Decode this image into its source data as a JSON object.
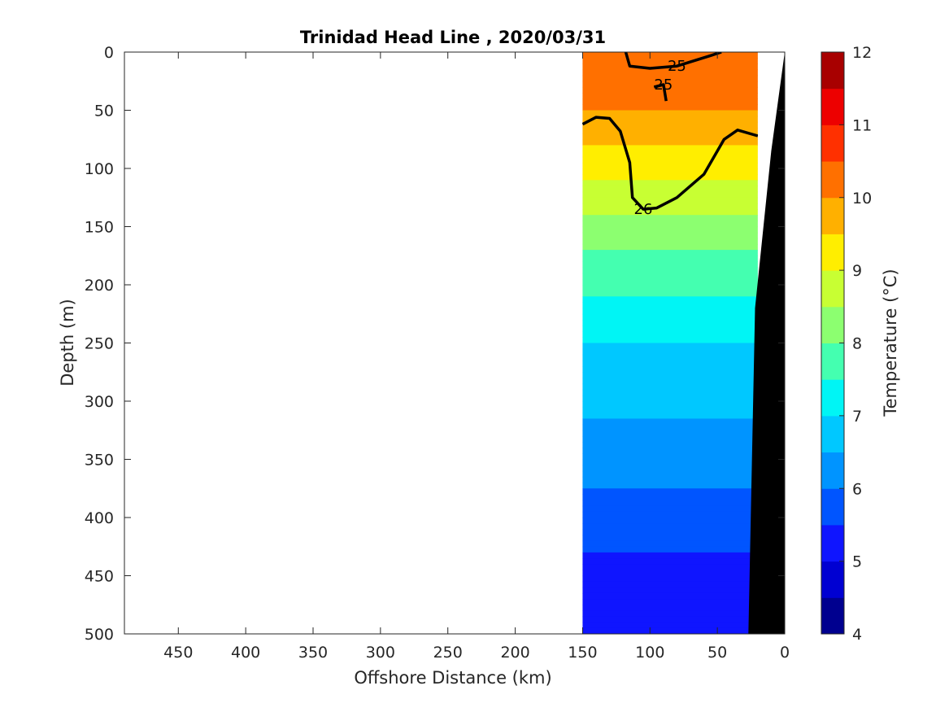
{
  "chart_data": {
    "type": "heatmap",
    "title": "Trinidad Head Line , 2020/03/31",
    "xlabel": "Offshore Distance (km)",
    "ylabel": "Depth (m)",
    "xlim": [
      490,
      0
    ],
    "ylim": [
      500,
      0
    ],
    "x_reversed": true,
    "y_reversed": true,
    "x_ticks": [
      "450",
      "400",
      "350",
      "300",
      "250",
      "200",
      "150",
      "100",
      "50",
      "0"
    ],
    "y_ticks": [
      "0",
      "50",
      "100",
      "150",
      "200",
      "250",
      "300",
      "350",
      "400",
      "450",
      "500"
    ],
    "colorbar": {
      "label": "Temperature (°C)",
      "range": [
        4,
        12
      ],
      "step": 0.5,
      "tick_labels": [
        "12",
        "11",
        "10",
        "9",
        "8",
        "7",
        "6",
        "5",
        "4"
      ],
      "colors": [
        "#00008f",
        "#0000d2",
        "#0f15ff",
        "#0055ff",
        "#0094ff",
        "#00c8ff",
        "#00f5f5",
        "#44ffb0",
        "#8cff70",
        "#c8ff33",
        "#ffee00",
        "#ffb000",
        "#ff7000",
        "#ff3000",
        "#ed0000",
        "#a80000"
      ]
    },
    "data_extent_km": [
      150,
      20
    ],
    "temperature_profile": [
      {
        "depth": 0,
        "temp": 10.5
      },
      {
        "depth": 50,
        "temp": 10.0
      },
      {
        "depth": 100,
        "temp": 9.2
      },
      {
        "depth": 150,
        "temp": 8.3
      },
      {
        "depth": 200,
        "temp": 7.6
      },
      {
        "depth": 250,
        "temp": 7.0
      },
      {
        "depth": 300,
        "temp": 6.6
      },
      {
        "depth": 350,
        "temp": 6.2
      },
      {
        "depth": 400,
        "temp": 5.8
      },
      {
        "depth": 450,
        "temp": 5.3
      },
      {
        "depth": 500,
        "temp": 5.0
      }
    ],
    "density_contours": [
      {
        "label": "25",
        "points": [
          [
            118,
            0
          ],
          [
            115,
            12
          ],
          [
            100,
            14
          ],
          [
            80,
            12
          ],
          [
            55,
            3
          ],
          [
            47,
            0
          ]
        ]
      },
      {
        "label": "25",
        "points": [
          [
            97,
            30
          ],
          [
            90,
            28
          ],
          [
            88,
            42
          ]
        ]
      },
      {
        "label": "26",
        "points": [
          [
            150,
            62
          ],
          [
            140,
            56
          ],
          [
            130,
            57
          ],
          [
            122,
            68
          ],
          [
            115,
            95
          ],
          [
            113,
            125
          ],
          [
            105,
            135
          ],
          [
            95,
            134
          ],
          [
            80,
            125
          ],
          [
            60,
            105
          ],
          [
            45,
            75
          ],
          [
            35,
            67
          ],
          [
            20,
            72
          ]
        ]
      }
    ],
    "bathymetry_km": [
      [
        0,
        0
      ],
      [
        10,
        85
      ],
      [
        22,
        220
      ],
      [
        27,
        500
      ]
    ],
    "grid": false
  }
}
